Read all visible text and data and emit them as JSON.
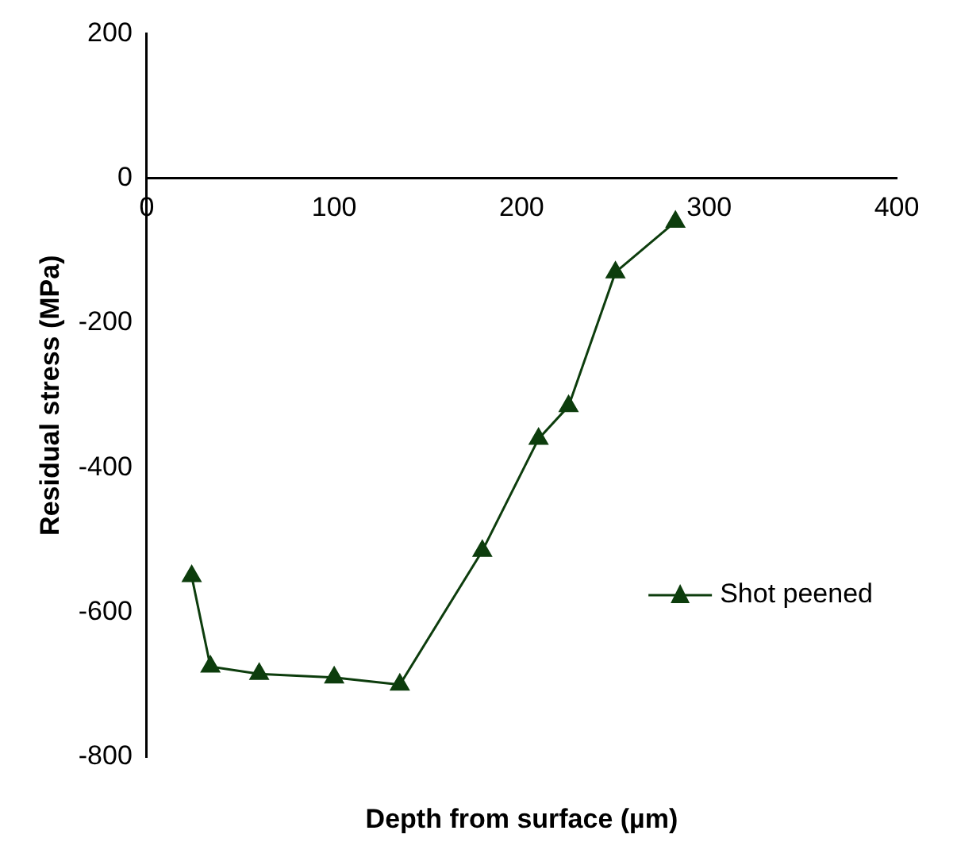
{
  "chart_data": {
    "type": "line",
    "xlabel": "Depth from surface (µm)",
    "ylabel": "Residual stress (MPa)",
    "x": [
      24,
      34,
      60,
      100,
      135,
      179,
      209,
      225,
      250,
      282
    ],
    "series": [
      {
        "name": "Shot peened",
        "color": "#0d3d0d",
        "values": [
          -550,
          -675,
          -685,
          -690,
          -700,
          -515,
          -360,
          -315,
          -130,
          -60
        ]
      }
    ],
    "xlim": [
      0,
      400
    ],
    "xticks": [
      0,
      100,
      200,
      300,
      400
    ],
    "ylim": [
      -800,
      200
    ],
    "yticks": [
      -800,
      -600,
      -400,
      -200,
      0,
      200
    ],
    "grid": false,
    "legend": "bottom right",
    "marker": "triangle",
    "line_style": "solid"
  }
}
